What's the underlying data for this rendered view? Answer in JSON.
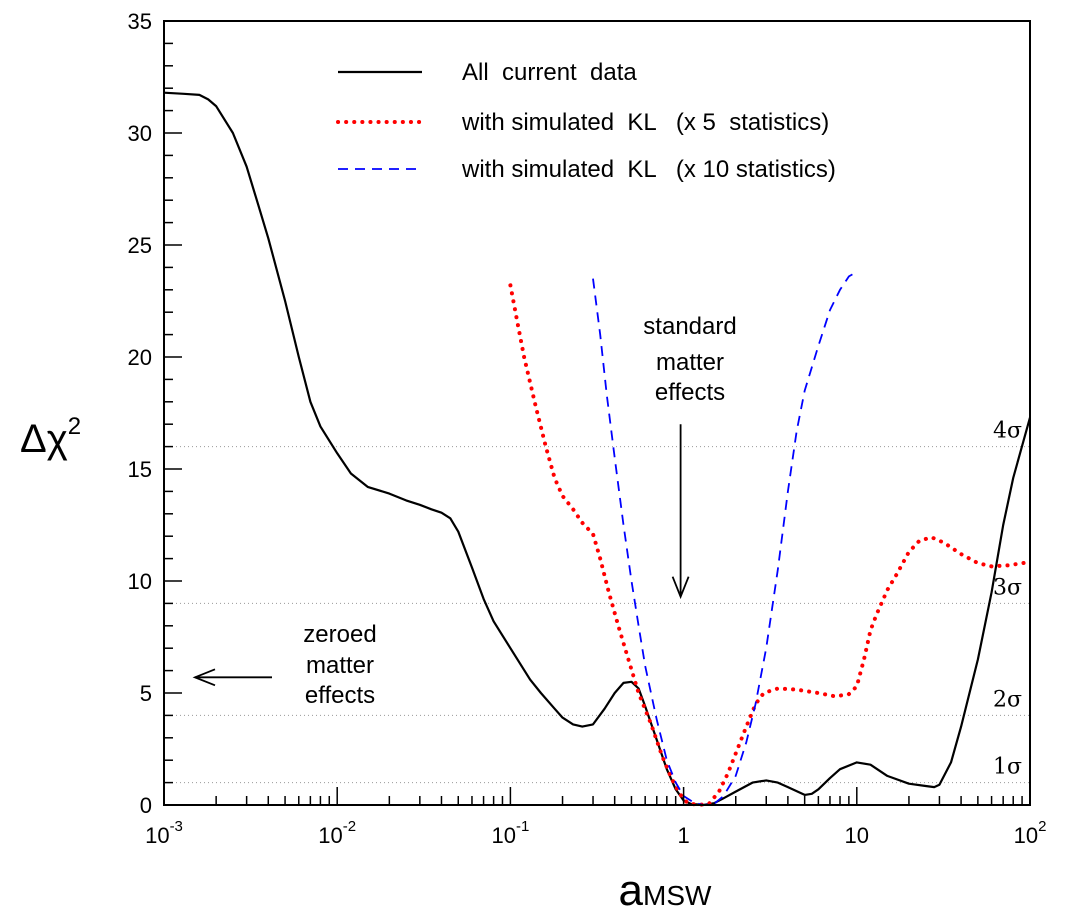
{
  "chart_data": {
    "type": "line",
    "x_scale": "log",
    "xlim": [
      0.001,
      100
    ],
    "ylim": [
      0,
      35
    ],
    "xlabel": {
      "main": "a",
      "sub": "MSW"
    },
    "ylabel": {
      "main": "Δχ",
      "sup": "2"
    },
    "x_ticks": [
      {
        "value": 0.001,
        "base": "10",
        "exp": "-3"
      },
      {
        "value": 0.01,
        "base": "10",
        "exp": "-2"
      },
      {
        "value": 0.1,
        "base": "10",
        "exp": "-1"
      },
      {
        "value": 1,
        "base": "1",
        "exp": ""
      },
      {
        "value": 10,
        "base": "10",
        "exp": ""
      },
      {
        "value": 100,
        "base": "10",
        "exp": "2"
      }
    ],
    "y_ticks": [
      {
        "value": 0,
        "label": "0"
      },
      {
        "value": 5,
        "label": "5"
      },
      {
        "value": 10,
        "label": "10"
      },
      {
        "value": 15,
        "label": "15"
      },
      {
        "value": 20,
        "label": "20"
      },
      {
        "value": 25,
        "label": "25"
      },
      {
        "value": 30,
        "label": "30"
      },
      {
        "value": 35,
        "label": "35"
      }
    ],
    "sigma_levels": [
      {
        "value": 1,
        "label": "1σ"
      },
      {
        "value": 4,
        "label": "2σ"
      },
      {
        "value": 9,
        "label": "3σ"
      },
      {
        "value": 16,
        "label": "4σ"
      }
    ],
    "legend_position": "top-center",
    "series": [
      {
        "name": "All  current  data",
        "style": "solid",
        "color": "#000000",
        "points": [
          [
            0.001,
            31.8
          ],
          [
            0.0013,
            31.75
          ],
          [
            0.0016,
            31.7
          ],
          [
            0.0018,
            31.5
          ],
          [
            0.002,
            31.2
          ],
          [
            0.0025,
            30.0
          ],
          [
            0.003,
            28.5
          ],
          [
            0.0035,
            26.8
          ],
          [
            0.004,
            25.3
          ],
          [
            0.005,
            22.5
          ],
          [
            0.006,
            20.0
          ],
          [
            0.007,
            18.0
          ],
          [
            0.008,
            16.9
          ],
          [
            0.01,
            15.7
          ],
          [
            0.012,
            14.8
          ],
          [
            0.015,
            14.2
          ],
          [
            0.02,
            13.9
          ],
          [
            0.025,
            13.6
          ],
          [
            0.03,
            13.4
          ],
          [
            0.035,
            13.2
          ],
          [
            0.04,
            13.05
          ],
          [
            0.045,
            12.8
          ],
          [
            0.05,
            12.2
          ],
          [
            0.06,
            10.6
          ],
          [
            0.07,
            9.2
          ],
          [
            0.08,
            8.2
          ],
          [
            0.1,
            7.0
          ],
          [
            0.13,
            5.6
          ],
          [
            0.15,
            5.0
          ],
          [
            0.18,
            4.3
          ],
          [
            0.2,
            3.9
          ],
          [
            0.23,
            3.6
          ],
          [
            0.26,
            3.5
          ],
          [
            0.3,
            3.6
          ],
          [
            0.35,
            4.3
          ],
          [
            0.4,
            5.0
          ],
          [
            0.45,
            5.45
          ],
          [
            0.5,
            5.5
          ],
          [
            0.55,
            5.2
          ],
          [
            0.6,
            4.4
          ],
          [
            0.7,
            2.9
          ],
          [
            0.8,
            1.6
          ],
          [
            0.9,
            0.7
          ],
          [
            1.0,
            0.2
          ],
          [
            1.1,
            0.05
          ],
          [
            1.3,
            0.0
          ],
          [
            1.5,
            0.08
          ],
          [
            1.7,
            0.3
          ],
          [
            2.0,
            0.6
          ],
          [
            2.5,
            1.0
          ],
          [
            3.0,
            1.1
          ],
          [
            3.5,
            1.0
          ],
          [
            4.0,
            0.8
          ],
          [
            5.0,
            0.45
          ],
          [
            5.5,
            0.5
          ],
          [
            6.0,
            0.7
          ],
          [
            7.0,
            1.2
          ],
          [
            8.0,
            1.6
          ],
          [
            10.0,
            1.9
          ],
          [
            12.0,
            1.8
          ],
          [
            15.0,
            1.3
          ],
          [
            20.0,
            0.95
          ],
          [
            25.0,
            0.85
          ],
          [
            28.0,
            0.8
          ],
          [
            30.0,
            0.9
          ],
          [
            35.0,
            1.9
          ],
          [
            40.0,
            3.5
          ],
          [
            50.0,
            6.5
          ],
          [
            60.0,
            9.5
          ],
          [
            70.0,
            12.5
          ],
          [
            80.0,
            14.6
          ],
          [
            100.0,
            17.3
          ]
        ]
      },
      {
        "name": "with simulated  KL   (x 5  statistics)",
        "style": "dotted",
        "color": "#ff0000",
        "points": [
          [
            0.1,
            23.2
          ],
          [
            0.11,
            21.5
          ],
          [
            0.12,
            20.0
          ],
          [
            0.14,
            17.8
          ],
          [
            0.16,
            16.0
          ],
          [
            0.18,
            14.6
          ],
          [
            0.2,
            13.8
          ],
          [
            0.23,
            13.2
          ],
          [
            0.26,
            12.6
          ],
          [
            0.3,
            12.1
          ],
          [
            0.33,
            11.0
          ],
          [
            0.37,
            9.5
          ],
          [
            0.42,
            8.0
          ],
          [
            0.48,
            6.5
          ],
          [
            0.55,
            5.0
          ],
          [
            0.65,
            3.6
          ],
          [
            0.75,
            2.2
          ],
          [
            0.85,
            1.2
          ],
          [
            0.95,
            0.5
          ],
          [
            1.05,
            0.1
          ],
          [
            1.2,
            0.0
          ],
          [
            1.4,
            0.05
          ],
          [
            1.6,
            0.6
          ],
          [
            1.8,
            1.4
          ],
          [
            2.0,
            2.3
          ],
          [
            2.3,
            3.5
          ],
          [
            2.6,
            4.5
          ],
          [
            2.9,
            5.0
          ],
          [
            3.5,
            5.2
          ],
          [
            4.5,
            5.15
          ],
          [
            6.0,
            5.0
          ],
          [
            7.5,
            4.85
          ],
          [
            9.0,
            4.95
          ],
          [
            10.0,
            5.3
          ],
          [
            11.0,
            6.5
          ],
          [
            12.0,
            7.8
          ],
          [
            13.0,
            8.5
          ],
          [
            15.0,
            9.6
          ],
          [
            17.0,
            10.3
          ],
          [
            20.0,
            11.3
          ],
          [
            23.0,
            11.8
          ],
          [
            27.0,
            11.95
          ],
          [
            32.0,
            11.7
          ],
          [
            40.0,
            11.2
          ],
          [
            50.0,
            10.8
          ],
          [
            60.0,
            10.65
          ],
          [
            75.0,
            10.7
          ],
          [
            100.0,
            10.85
          ]
        ]
      },
      {
        "name": "with simulated  KL   (x 10 statistics)",
        "style": "dashed",
        "color": "#0000ff",
        "points": [
          [
            0.3,
            23.5
          ],
          [
            0.33,
            21.0
          ],
          [
            0.36,
            18.3
          ],
          [
            0.4,
            15.5
          ],
          [
            0.45,
            12.5
          ],
          [
            0.5,
            10.0
          ],
          [
            0.55,
            8.0
          ],
          [
            0.6,
            6.2
          ],
          [
            0.7,
            3.8
          ],
          [
            0.8,
            2.0
          ],
          [
            0.9,
            1.0
          ],
          [
            1.0,
            0.4
          ],
          [
            1.15,
            0.1
          ],
          [
            1.3,
            0.0
          ],
          [
            1.5,
            0.05
          ],
          [
            1.7,
            0.4
          ],
          [
            2.0,
            1.3
          ],
          [
            2.3,
            2.8
          ],
          [
            2.6,
            4.5
          ],
          [
            3.0,
            7.0
          ],
          [
            3.5,
            10.5
          ],
          [
            4.0,
            14.0
          ],
          [
            4.5,
            16.7
          ],
          [
            5.0,
            18.5
          ],
          [
            6.0,
            20.5
          ],
          [
            7.0,
            22.1
          ],
          [
            8.0,
            23.0
          ],
          [
            9.0,
            23.6
          ],
          [
            10.0,
            23.8
          ]
        ]
      }
    ],
    "annotations": {
      "standard": {
        "lines": [
          "standard",
          "matter",
          "effects"
        ],
        "arrow_x": 1.0,
        "arrow_from": 17.0,
        "arrow_to": 9.3
      },
      "zeroed": {
        "lines": [
          "zeroed",
          "matter",
          "effects"
        ],
        "arrow_y": 5.7
      }
    }
  }
}
